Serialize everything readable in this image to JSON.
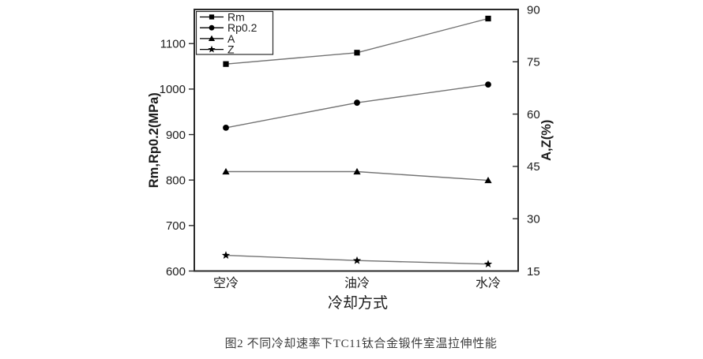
{
  "figure": {
    "caption": "图2  不同冷却速率下TC11钛合金锻件室温拉伸性能"
  },
  "chart_data": {
    "type": "line",
    "categories": [
      "空冷",
      "油冷",
      "水冷"
    ],
    "xlabel": "冷却方式",
    "ylabel_left": "Rm,Rp0.2(MPa)",
    "ylabel_right": "A,Z(%)",
    "ylim_left": [
      600,
      1175
    ],
    "yticks_left": [
      600,
      700,
      800,
      900,
      1000,
      1100
    ],
    "ylim_right": [
      15,
      90
    ],
    "yticks_right": [
      15,
      30,
      45,
      60,
      75,
      90
    ],
    "grid": false,
    "legend_position": "top-left",
    "series": [
      {
        "name": "Rm",
        "axis": "left",
        "marker": "square",
        "values": [
          1055,
          1080,
          1155
        ]
      },
      {
        "name": "Rp0.2",
        "axis": "left",
        "marker": "circle",
        "values": [
          915,
          970,
          1010
        ]
      },
      {
        "name": "A",
        "axis": "right",
        "marker": "triangle",
        "values": [
          43.5,
          43.5,
          41
        ]
      },
      {
        "name": "Z",
        "axis": "right",
        "marker": "star",
        "values": [
          19.5,
          18,
          17
        ]
      }
    ],
    "colors": {
      "line": "#737373",
      "marker": "#000000",
      "axis": "#2b2b2b"
    }
  }
}
